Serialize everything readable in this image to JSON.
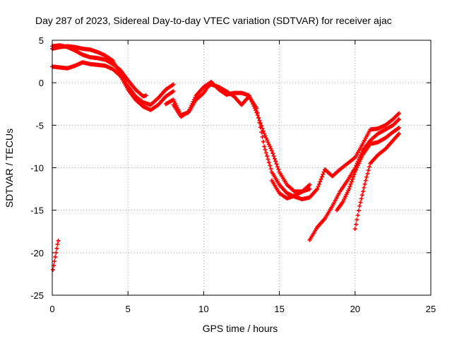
{
  "chart_data": {
    "type": "scatter",
    "title": "Day 287 of 2023, Sidereal Day-to-day VTEC variation (SDTVAR) for receiver ajac",
    "xlabel": "GPS time / hours",
    "ylabel": "SDTVAR / TECUs",
    "xlim": [
      0,
      25
    ],
    "ylim": [
      -25,
      5
    ],
    "xticks": [
      0,
      5,
      10,
      15,
      20,
      25
    ],
    "yticks": [
      5,
      0,
      -5,
      -10,
      -15,
      -20,
      -25
    ],
    "grid": true,
    "marker": "+",
    "color": "#ff0000",
    "series": [
      {
        "name": "track-1",
        "points": [
          [
            0.0,
            1.9
          ],
          [
            0.5,
            1.8
          ],
          [
            1.0,
            1.7
          ],
          [
            1.5,
            2.0
          ],
          [
            2.0,
            2.4
          ],
          [
            2.5,
            2.2
          ],
          [
            3.0,
            2.1
          ],
          [
            3.5,
            2.0
          ],
          [
            4.0,
            1.6
          ],
          [
            4.5,
            0.8
          ],
          [
            5.0,
            -0.8
          ],
          [
            5.5,
            -2.0
          ],
          [
            6.0,
            -2.8
          ],
          [
            6.5,
            -3.2
          ],
          [
            7.0,
            -2.6
          ],
          [
            7.5,
            -1.6
          ],
          [
            8.0,
            -1.0
          ]
        ]
      },
      {
        "name": "track-2",
        "points": [
          [
            0.0,
            4.0
          ],
          [
            0.5,
            4.2
          ],
          [
            1.0,
            4.3
          ],
          [
            1.5,
            4.2
          ],
          [
            2.0,
            4.0
          ],
          [
            2.5,
            3.9
          ],
          [
            3.0,
            3.6
          ],
          [
            3.5,
            3.2
          ],
          [
            4.0,
            2.6
          ],
          [
            4.5,
            1.0
          ],
          [
            5.0,
            -0.4
          ],
          [
            5.5,
            -1.6
          ],
          [
            6.0,
            -2.3
          ],
          [
            6.5,
            -2.6
          ],
          [
            7.0,
            -1.8
          ],
          [
            7.5,
            -0.8
          ],
          [
            8.0,
            -0.2
          ]
        ]
      },
      {
        "name": "track-3",
        "points": [
          [
            0.0,
            4.3
          ],
          [
            0.5,
            4.4
          ],
          [
            1.0,
            4.2
          ],
          [
            1.5,
            3.8
          ],
          [
            2.0,
            3.3
          ],
          [
            2.5,
            3.0
          ],
          [
            3.0,
            2.9
          ],
          [
            3.5,
            2.7
          ],
          [
            4.0,
            2.2
          ],
          [
            4.5,
            1.5
          ],
          [
            5.0,
            0.3
          ],
          [
            5.5,
            -0.8
          ],
          [
            6.0,
            -1.6
          ],
          [
            6.2,
            -1.5
          ]
        ]
      },
      {
        "name": "track-4",
        "points": [
          [
            7.5,
            -2.5
          ],
          [
            8.0,
            -2.0
          ],
          [
            8.5,
            -3.8
          ],
          [
            9.0,
            -3.5
          ],
          [
            9.5,
            -2.0
          ],
          [
            10.0,
            -1.2
          ],
          [
            10.3,
            -0.4
          ],
          [
            10.5,
            -0.2
          ],
          [
            11.0,
            -0.5
          ],
          [
            11.5,
            -1.0
          ],
          [
            12.0,
            -1.6
          ],
          [
            12.5,
            -2.6
          ],
          [
            13.0,
            -1.6
          ],
          [
            13.5,
            -3.0
          ],
          [
            14.0,
            -7.5
          ],
          [
            14.5,
            -10.5
          ],
          [
            15.0,
            -12.0
          ],
          [
            15.5,
            -13.0
          ],
          [
            16.0,
            -13.4
          ],
          [
            16.5,
            -13.7
          ],
          [
            17.0,
            -13.5
          ],
          [
            17.5,
            -12.5
          ],
          [
            18.0,
            -10.2
          ],
          [
            18.5,
            -11.0
          ],
          [
            19.0,
            -10.2
          ],
          [
            19.5,
            -9.5
          ],
          [
            20.0,
            -8.8
          ],
          [
            20.5,
            -7.2
          ],
          [
            21.0,
            -5.5
          ],
          [
            21.5,
            -5.4
          ],
          [
            22.0,
            -5.0
          ],
          [
            22.5,
            -4.3
          ],
          [
            22.9,
            -3.6
          ]
        ]
      },
      {
        "name": "track-5",
        "points": [
          [
            8.0,
            -2.6
          ],
          [
            8.5,
            -4.0
          ],
          [
            9.0,
            -3.4
          ],
          [
            9.5,
            -1.5
          ],
          [
            10.0,
            -0.5
          ],
          [
            10.5,
            0.1
          ],
          [
            11.0,
            -0.8
          ],
          [
            11.5,
            -1.4
          ],
          [
            12.0,
            -1.2
          ],
          [
            12.5,
            -1.2
          ],
          [
            13.0,
            -1.5
          ],
          [
            13.5,
            -3.5
          ],
          [
            14.0,
            -6.0
          ],
          [
            14.5,
            -8.0
          ],
          [
            15.0,
            -10.5
          ],
          [
            15.5,
            -12.0
          ],
          [
            16.0,
            -12.8
          ],
          [
            16.5,
            -12.8
          ],
          [
            17.0,
            -12.0
          ]
        ]
      },
      {
        "name": "track-6",
        "points": [
          [
            14.5,
            -11.5
          ],
          [
            15.0,
            -13.0
          ],
          [
            15.5,
            -13.6
          ],
          [
            16.0,
            -13.3
          ],
          [
            16.5,
            -12.8
          ],
          [
            17.0,
            -12.5
          ]
        ]
      },
      {
        "name": "track-7",
        "points": [
          [
            17.0,
            -18.5
          ],
          [
            17.5,
            -17.0
          ],
          [
            18.0,
            -16.0
          ],
          [
            18.5,
            -14.5
          ],
          [
            19.0,
            -12.8
          ],
          [
            19.5,
            -11.5
          ],
          [
            20.0,
            -10.0
          ],
          [
            20.5,
            -8.0
          ],
          [
            21.0,
            -6.8
          ],
          [
            21.5,
            -6.0
          ],
          [
            22.0,
            -5.5
          ],
          [
            22.5,
            -5.0
          ],
          [
            22.9,
            -4.3
          ]
        ]
      },
      {
        "name": "track-8",
        "points": [
          [
            18.8,
            -15.0
          ],
          [
            19.2,
            -14.0
          ],
          [
            19.6,
            -12.5
          ],
          [
            20.0,
            -10.5
          ],
          [
            20.5,
            -8.5
          ],
          [
            21.0,
            -7.2
          ],
          [
            21.5,
            -7.0
          ],
          [
            22.0,
            -6.5
          ],
          [
            22.5,
            -5.8
          ],
          [
            22.9,
            -5.3
          ]
        ]
      },
      {
        "name": "track-9",
        "points": [
          [
            20.0,
            -17.2
          ],
          [
            20.3,
            -14.5
          ],
          [
            20.7,
            -11.5
          ],
          [
            21.0,
            -9.5
          ],
          [
            21.5,
            -8.5
          ],
          [
            22.0,
            -7.8
          ],
          [
            22.5,
            -6.8
          ],
          [
            22.9,
            -6.0
          ]
        ]
      },
      {
        "name": "track-10",
        "points": [
          [
            0.05,
            -22.0
          ],
          [
            0.15,
            -21.0
          ],
          [
            0.25,
            -20.0
          ],
          [
            0.35,
            -19.0
          ],
          [
            0.4,
            -18.6
          ]
        ]
      }
    ]
  }
}
